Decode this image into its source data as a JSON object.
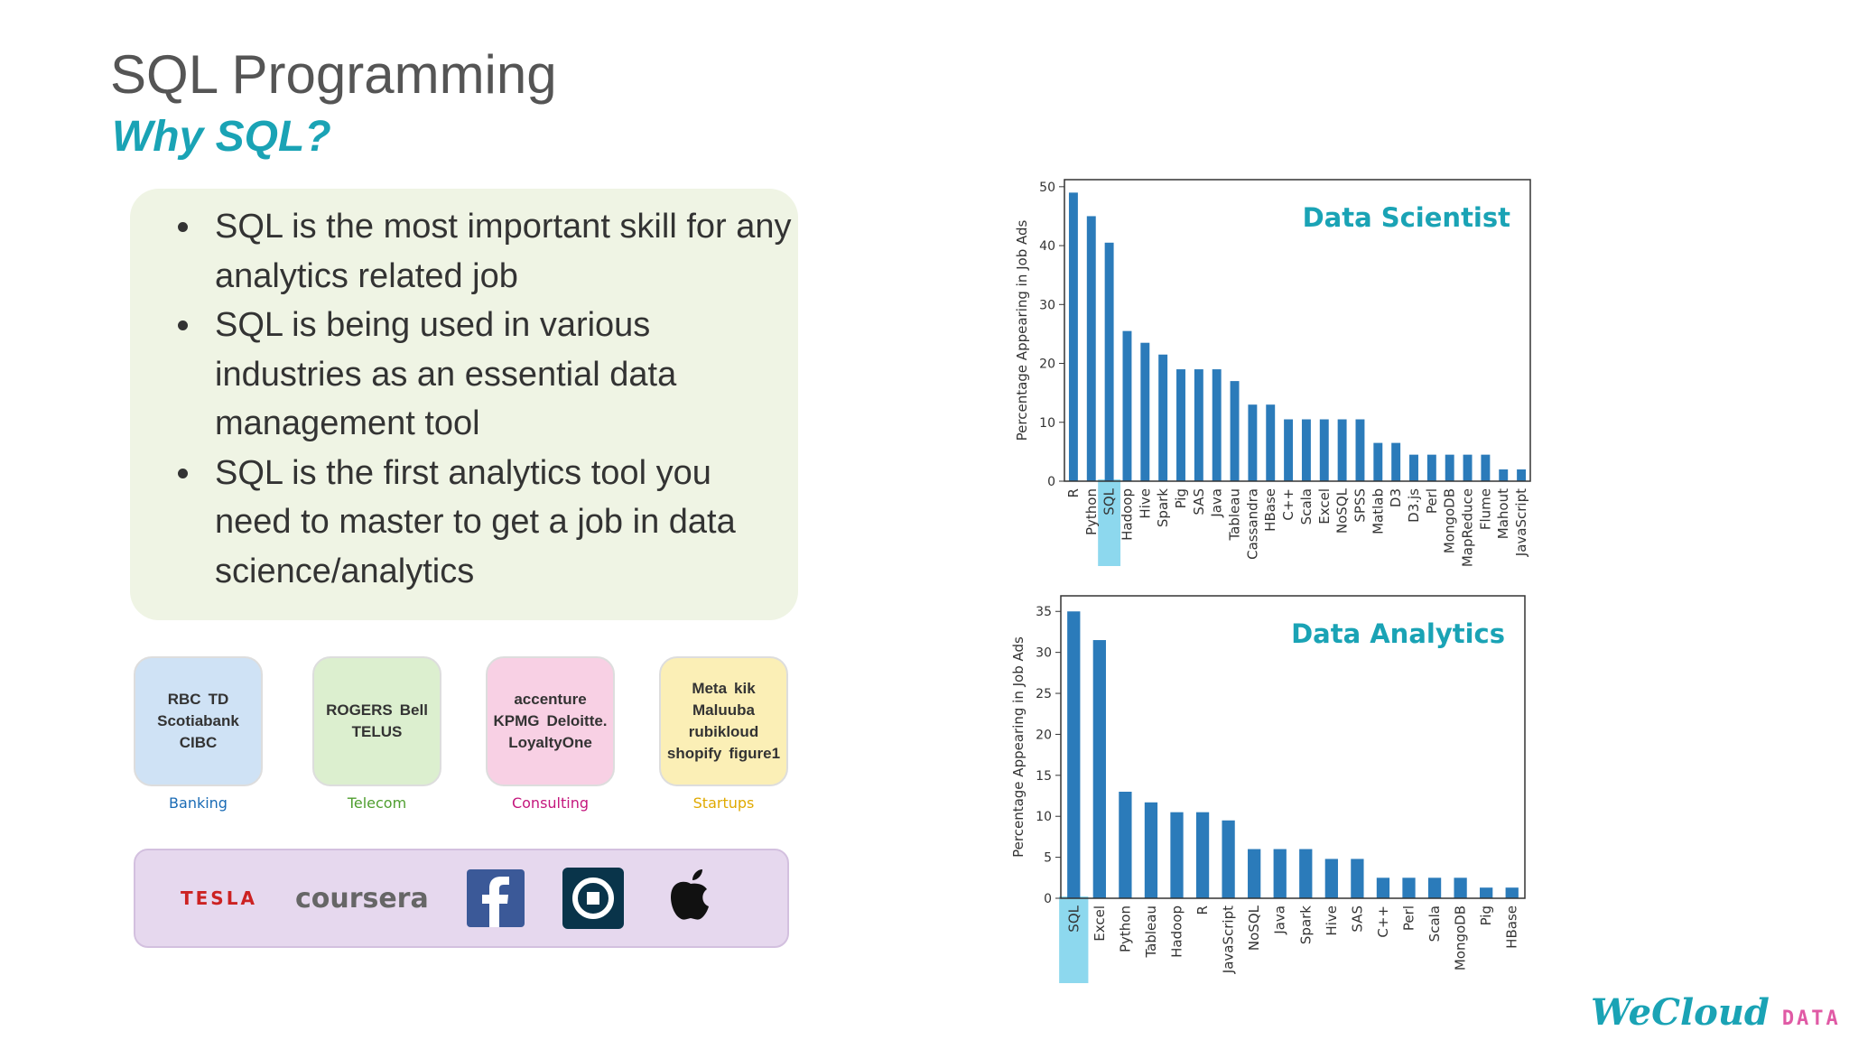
{
  "header": {
    "title": "SQL Programming",
    "subtitle": "Why SQL?"
  },
  "bullets": [
    "SQL is the most important skill for any analytics related job",
    "SQL is being used in various industries as an essential data management tool",
    "SQL is the first analytics tool you need to master to get a job in data science/analytics"
  ],
  "logo_groups": [
    {
      "label": "Banking",
      "color": "#1a6bb5",
      "bg": "#cfe2f5",
      "logos": [
        "RBC",
        "TD",
        "Scotiabank",
        "CIBC"
      ]
    },
    {
      "label": "Telecom",
      "color": "#4f9e2f",
      "bg": "#dcefcf",
      "logos": [
        "ROGERS",
        "Bell",
        "TELUS"
      ]
    },
    {
      "label": "Consulting",
      "color": "#c4177d",
      "bg": "#f8d0e4",
      "logos": [
        "accenture",
        "KPMG",
        "Deloitte.",
        "LoyaltyOne"
      ]
    },
    {
      "label": "Startups",
      "color": "#e0a900",
      "bg": "#fbefb6",
      "logos": [
        "Meta",
        "kik",
        "Maluuba",
        "rubikloud",
        "shopify",
        "figure1"
      ]
    }
  ],
  "companies": [
    "TESLA",
    "coursera"
  ],
  "footer": {
    "brand": "WeCloud",
    "suffix": "DATA"
  },
  "chart_data": [
    {
      "type": "bar",
      "title": "Data Scientist",
      "ylabel": "Percentage Appearing in Job Ads",
      "color": "#2b7bba",
      "highlight_index": 2,
      "categories": [
        "R",
        "Python",
        "SQL",
        "Hadoop",
        "Hive",
        "Spark",
        "Pig",
        "SAS",
        "Java",
        "Tableau",
        "Cassandra",
        "HBase",
        "C++",
        "Scala",
        "Excel",
        "NoSQL",
        "SPSS",
        "Matlab",
        "D3",
        "D3.js",
        "Perl",
        "MongoDB",
        "MapReduce",
        "Flume",
        "Mahout",
        "JavaScript"
      ],
      "values": [
        49,
        45,
        40.5,
        25.5,
        23.5,
        21.5,
        19,
        19,
        19,
        17,
        13,
        13,
        10.5,
        10.5,
        10.5,
        10.5,
        10.5,
        6.5,
        6.5,
        4.5,
        4.5,
        4.5,
        4.5,
        4.5,
        2,
        2
      ],
      "ylim": [
        0,
        51.2
      ],
      "yticks": [
        0,
        10,
        20,
        30,
        40,
        50
      ]
    },
    {
      "type": "bar",
      "title": "Data Analytics",
      "ylabel": "Percentage Appearing in Job Ads",
      "color": "#2b7bba",
      "highlight_index": 0,
      "categories": [
        "SQL",
        "Excel",
        "Python",
        "Tableau",
        "Hadoop",
        "R",
        "JavaScript",
        "NoSQL",
        "Java",
        "Spark",
        "Hive",
        "SAS",
        "C++",
        "Perl",
        "Scala",
        "MongoDB",
        "Pig",
        "HBase"
      ],
      "values": [
        35,
        31.5,
        13,
        11.7,
        10.5,
        10.5,
        9.5,
        6,
        6,
        6,
        4.8,
        4.8,
        2.5,
        2.5,
        2.5,
        2.5,
        1.3,
        1.3
      ],
      "ylim": [
        0,
        36.9
      ],
      "yticks": [
        0,
        5,
        10,
        15,
        20,
        25,
        30,
        35
      ]
    }
  ]
}
